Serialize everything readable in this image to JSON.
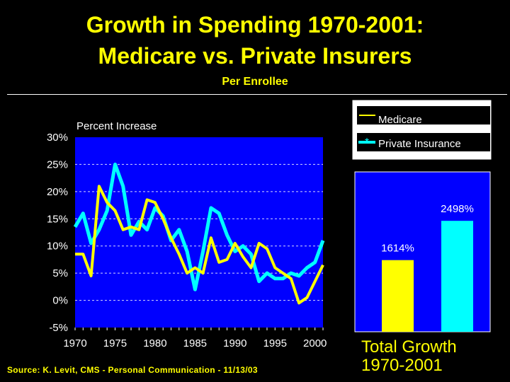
{
  "title_line1": "Growth in Spending 1970-2001:",
  "title_line2": "Medicare vs. Private Insurers",
  "subtitle": "Per Enrollee",
  "source": "Source: K. Levit, CMS - Personal Communication - 11/13/03",
  "colors": {
    "background": "#000000",
    "title": "#ffff00",
    "plot_bg": "#0000ff",
    "medicare": "#ffff00",
    "private": "#00ffff"
  },
  "chart_data": [
    {
      "type": "line",
      "title": "Percent Increase",
      "xlabel": "",
      "ylabel": "Percent Increase",
      "x": [
        1970,
        1971,
        1972,
        1973,
        1974,
        1975,
        1976,
        1977,
        1978,
        1979,
        1980,
        1981,
        1982,
        1983,
        1984,
        1985,
        1986,
        1987,
        1988,
        1989,
        1990,
        1991,
        1992,
        1993,
        1994,
        1995,
        1996,
        1997,
        1998,
        1999,
        2000,
        2001
      ],
      "xticks": [
        1970,
        1975,
        1980,
        1985,
        1990,
        1995,
        2000
      ],
      "xtick_labels": [
        "1970",
        "1975",
        "1980",
        "1985",
        "1990",
        "1995",
        "2000"
      ],
      "ylim": [
        -5,
        30
      ],
      "yticks": [
        -5,
        0,
        5,
        10,
        15,
        20,
        25,
        30
      ],
      "ytick_labels": [
        "-5%",
        "0%",
        "5%",
        "10%",
        "15%",
        "20%",
        "25%",
        "30%"
      ],
      "grid": true,
      "legend": "top-right",
      "series": [
        {
          "name": "Medicare",
          "color": "#ffff00",
          "values": [
            8.5,
            8.5,
            4.5,
            21,
            18,
            16.5,
            13,
            13.5,
            13,
            18.5,
            18,
            15,
            11.5,
            8.5,
            5,
            6,
            5,
            11.5,
            7,
            7.5,
            10.5,
            8,
            6,
            10.5,
            9.5,
            6,
            5,
            4,
            -0.5,
            0.5,
            3.5,
            6.5
          ]
        },
        {
          "name": "Private Insurance",
          "color": "#00ffff",
          "values": [
            13.5,
            16,
            10.5,
            13,
            16.5,
            25,
            21,
            12,
            14.5,
            13,
            17,
            15.5,
            11,
            13,
            9,
            2,
            9,
            17,
            16,
            12,
            9,
            10,
            8.5,
            3.5,
            5,
            4,
            4,
            5,
            4.5,
            6,
            7,
            11
          ]
        }
      ]
    },
    {
      "type": "bar",
      "title": "Total Growth 1970-2001",
      "categories": [
        "Medicare",
        "Private Insurance"
      ],
      "values": [
        1614,
        2498
      ],
      "data_labels": [
        "1614%",
        "2498%"
      ],
      "ylim": [
        0,
        3600
      ],
      "colors": [
        "#ffff00",
        "#00ffff"
      ]
    }
  ]
}
